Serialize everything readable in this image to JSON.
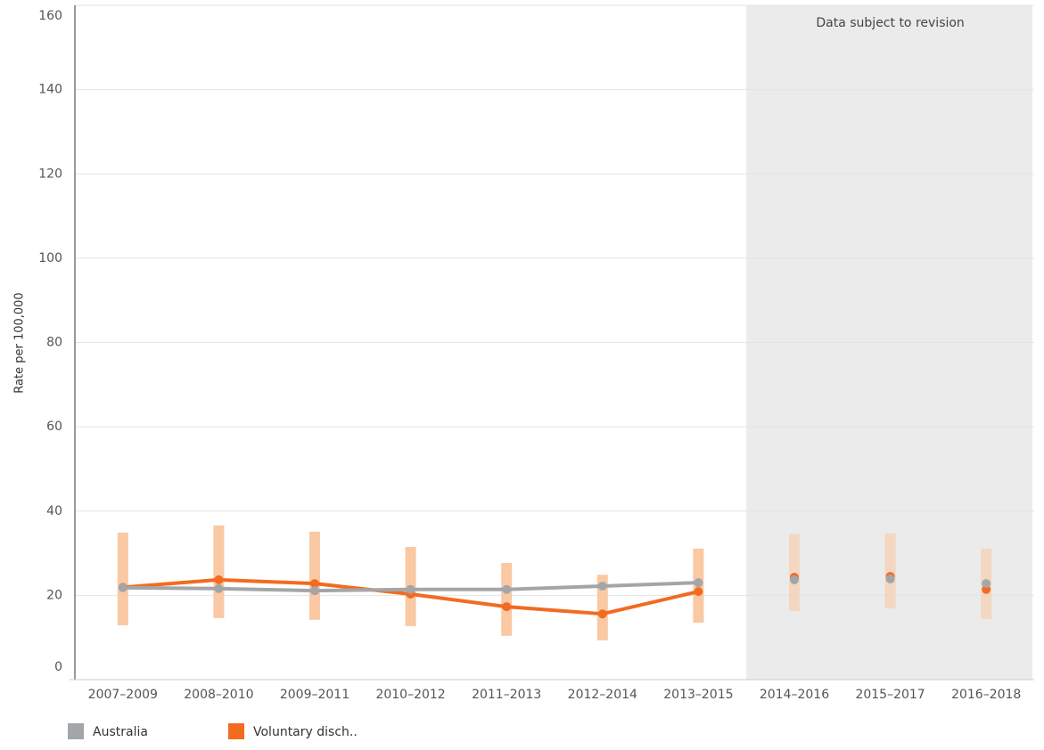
{
  "chart_data": {
    "type": "line",
    "y_label": "Rate per 100,000",
    "categories": [
      "2007–2009",
      "2008–2010",
      "2009–2011",
      "2010–2012",
      "2011–2013",
      "2012–2014",
      "2013–2015",
      "2014–2016",
      "2015–2017",
      "2016–2018"
    ],
    "series": [
      {
        "name": "Australia",
        "color": "#a3a6a9",
        "values": [
          21.8,
          21.6,
          21.1,
          21.4,
          21.4,
          22.2,
          23.0,
          23.7,
          23.9,
          22.8
        ]
      },
      {
        "name": "Voluntary disch..",
        "color": "#f26b21",
        "values": [
          21.9,
          23.7,
          22.8,
          20.3,
          17.3,
          15.6,
          20.9,
          24.3,
          24.5,
          21.4
        ],
        "lower": [
          12.9,
          14.6,
          14.2,
          12.7,
          10.4,
          9.3,
          13.5,
          16.3,
          16.9,
          14.4
        ],
        "upper": [
          34.9,
          36.6,
          35.1,
          31.5,
          27.7,
          24.9,
          31.1,
          34.5,
          34.7,
          31.1
        ],
        "interval_color": "#f9c9a4"
      }
    ],
    "annotation": {
      "text": "Data subject to revision",
      "start_category": 7,
      "color": "#ebebeb"
    },
    "ylim": [
      0,
      160
    ],
    "yticks": [
      0,
      20,
      40,
      60,
      80,
      100,
      120,
      140,
      160
    ],
    "grid": true,
    "legend": "bottom-left"
  }
}
